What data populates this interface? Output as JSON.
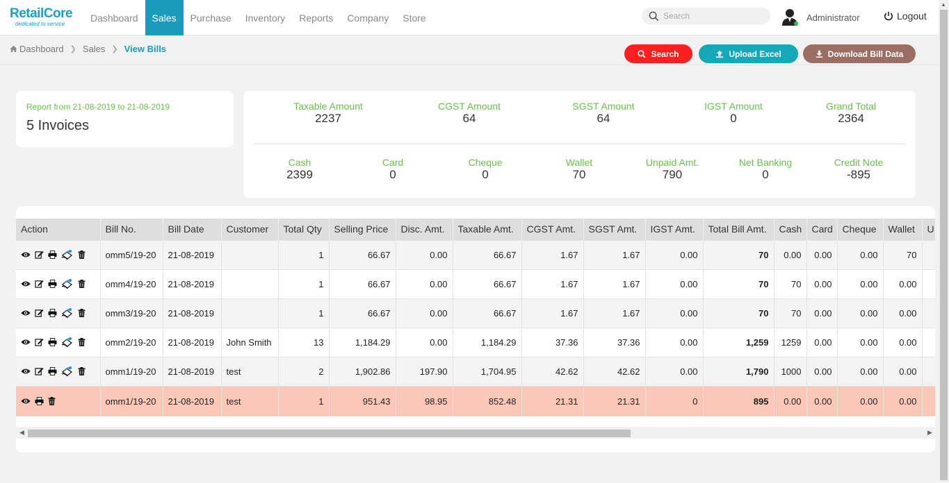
{
  "brand": {
    "name": "RetailCore",
    "tagline": "dedicated to service"
  },
  "nav": [
    {
      "label": "Dashboard",
      "active": false
    },
    {
      "label": "Sales",
      "active": true
    },
    {
      "label": "Purchase",
      "active": false
    },
    {
      "label": "Inventory",
      "active": false
    },
    {
      "label": "Reports",
      "active": false
    },
    {
      "label": "Company",
      "active": false
    },
    {
      "label": "Store",
      "active": false
    }
  ],
  "header": {
    "search_placeholder": "Search",
    "user": "Administrator",
    "logout": "Logout"
  },
  "breadcrumb": {
    "home": "Dashboard",
    "section": "Sales",
    "current": "View Bills"
  },
  "actions": {
    "search": "Search",
    "upload": "Upload Excel",
    "download": "Download Bill Data"
  },
  "report": {
    "range": "Report from 21-08-2019 to 21-08-2019",
    "count": "5 Invoices"
  },
  "stats_top": [
    {
      "label": "Taxable Amount",
      "value": "2237"
    },
    {
      "label": "CGST Amount",
      "value": "64"
    },
    {
      "label": "SGST Amount",
      "value": "64"
    },
    {
      "label": "IGST Amount",
      "value": "0"
    },
    {
      "label": "Grand Total",
      "value": "2364"
    }
  ],
  "stats_bottom": [
    {
      "label": "Cash",
      "value": "2399"
    },
    {
      "label": "Card",
      "value": "0"
    },
    {
      "label": "Cheque",
      "value": "0"
    },
    {
      "label": "Wallet",
      "value": "70"
    },
    {
      "label": "Unpaid Amt.",
      "value": "790"
    },
    {
      "label": "Net Banking",
      "value": "0"
    },
    {
      "label": "Credit Note",
      "value": "-895"
    }
  ],
  "table": {
    "columns": [
      "Action",
      "Bill No.",
      "Bill Date",
      "Customer",
      "Total Qty",
      "Selling Price",
      "Disc. Amt.",
      "Taxable Amt.",
      "CGST Amt.",
      "SGST Amt.",
      "IGST Amt.",
      "Total Bill Amt.",
      "Cash",
      "Card",
      "Cheque",
      "Wallet",
      "U"
    ],
    "rows": [
      {
        "bill_no": "omm5/19-20",
        "date": "21-08-2019",
        "customer": "",
        "qty": "1",
        "price": "66.67",
        "disc": "0.00",
        "taxable": "66.67",
        "cgst": "1.67",
        "sgst": "1.67",
        "igst": "0.00",
        "total": "70",
        "cash": "0.00",
        "card": "0.00",
        "cheque": "0.00",
        "wallet": "70",
        "highlight": false,
        "full_actions": true
      },
      {
        "bill_no": "omm4/19-20",
        "date": "21-08-2019",
        "customer": "",
        "qty": "1",
        "price": "66.67",
        "disc": "0.00",
        "taxable": "66.67",
        "cgst": "1.67",
        "sgst": "1.67",
        "igst": "0.00",
        "total": "70",
        "cash": "70",
        "card": "0.00",
        "cheque": "0.00",
        "wallet": "0.00",
        "highlight": false,
        "full_actions": true
      },
      {
        "bill_no": "omm3/19-20",
        "date": "21-08-2019",
        "customer": "",
        "qty": "1",
        "price": "66.67",
        "disc": "0.00",
        "taxable": "66.67",
        "cgst": "1.67",
        "sgst": "1.67",
        "igst": "0.00",
        "total": "70",
        "cash": "70",
        "card": "0.00",
        "cheque": "0.00",
        "wallet": "0.00",
        "highlight": false,
        "full_actions": true
      },
      {
        "bill_no": "omm2/19-20",
        "date": "21-08-2019",
        "customer": "John Smith",
        "qty": "13",
        "price": "1,184.29",
        "disc": "0.00",
        "taxable": "1,184.29",
        "cgst": "37.36",
        "sgst": "37.36",
        "igst": "0.00",
        "total": "1,259",
        "cash": "1259",
        "card": "0.00",
        "cheque": "0.00",
        "wallet": "0.00",
        "highlight": false,
        "full_actions": true
      },
      {
        "bill_no": "omm1/19-20",
        "date": "21-08-2019",
        "customer": "test",
        "qty": "2",
        "price": "1,902.86",
        "disc": "197.90",
        "taxable": "1,704.95",
        "cgst": "42.62",
        "sgst": "42.62",
        "igst": "0.00",
        "total": "1,790",
        "cash": "1000",
        "card": "0.00",
        "cheque": "0.00",
        "wallet": "0.00",
        "highlight": false,
        "full_actions": true
      },
      {
        "bill_no": "omm1/19-20",
        "date": "21-08-2019",
        "customer": "test",
        "qty": "1",
        "price": "951.43",
        "disc": "98.95",
        "taxable": "852.48",
        "cgst": "21.31",
        "sgst": "21.31",
        "igst": "0",
        "total": "895",
        "cash": "0.00",
        "card": "0.00",
        "cheque": "0.00",
        "wallet": "0.00",
        "highlight": true,
        "full_actions": false
      }
    ]
  },
  "colors": {
    "accent": "#1a9bb9",
    "green_label": "#6abf4b",
    "search_btn": "#ff1f1f",
    "upload_btn": "#15a8b9",
    "download_btn": "#9a6e62",
    "highlight_row": "#fcc9b9"
  }
}
